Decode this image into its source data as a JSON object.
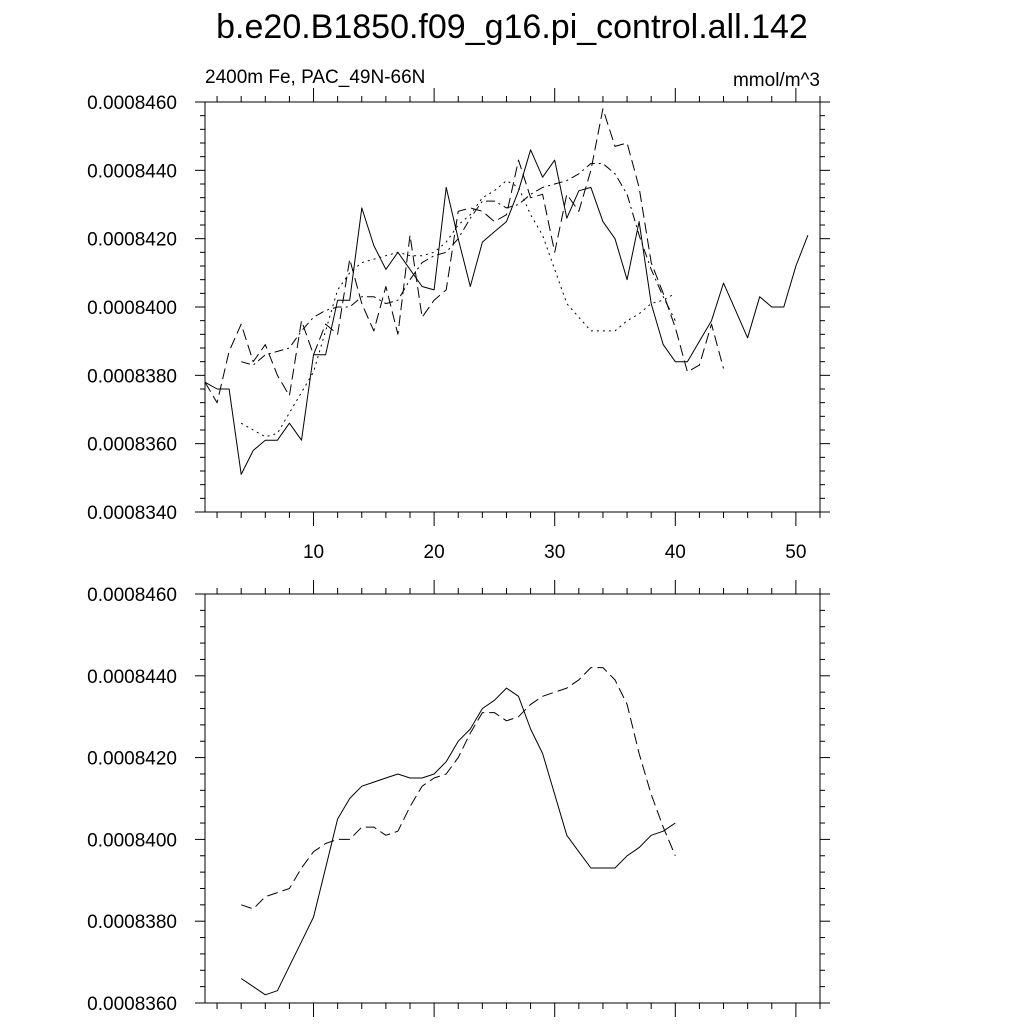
{
  "title": "b.e20.B1850.f09_g16.pi_control.all.142",
  "left_string": "2400m Fe, PAC_49N-66N",
  "right_string": "mmol/m^3",
  "chart_data": [
    {
      "type": "line",
      "panel": "top",
      "xlim": [
        1,
        52
      ],
      "ylim": [
        0.000834,
        0.000846
      ],
      "x_ticks": [
        10,
        20,
        30,
        40,
        50
      ],
      "y_ticks": [
        0.000834,
        0.000836,
        0.000838,
        0.00084,
        0.000842,
        0.000844,
        0.000846
      ],
      "y_tick_labels": [
        "0.0008340",
        "0.0008360",
        "0.0008380",
        "0.0008400",
        "0.0008420",
        "0.0008440",
        "0.0008460"
      ],
      "series": [
        {
          "style": "solid",
          "points": [
            [
              1,
              0.0008378
            ],
            [
              2,
              0.0008376
            ],
            [
              3,
              0.0008376
            ],
            [
              4,
              0.0008351
            ],
            [
              5,
              0.0008358
            ],
            [
              6,
              0.0008361
            ],
            [
              7,
              0.0008361
            ],
            [
              8,
              0.0008366
            ],
            [
              9,
              0.0008361
            ],
            [
              10,
              0.0008386
            ],
            [
              11,
              0.0008386
            ],
            [
              12,
              0.0008402
            ],
            [
              13,
              0.0008402
            ],
            [
              14,
              0.0008429
            ],
            [
              15,
              0.0008418
            ],
            [
              16,
              0.0008411
            ],
            [
              17,
              0.0008416
            ],
            [
              18,
              0.0008411
            ],
            [
              19,
              0.0008406
            ],
            [
              20,
              0.0008405
            ],
            [
              21,
              0.0008435
            ],
            [
              22,
              0.000842
            ],
            [
              23,
              0.0008406
            ],
            [
              24,
              0.0008419
            ],
            [
              25,
              0.0008422
            ],
            [
              26,
              0.0008425
            ],
            [
              27,
              0.0008434
            ],
            [
              28,
              0.0008446
            ],
            [
              29,
              0.0008438
            ],
            [
              30,
              0.0008443
            ],
            [
              31,
              0.0008426
            ],
            [
              32,
              0.0008434
            ],
            [
              33,
              0.0008435
            ],
            [
              34,
              0.0008425
            ],
            [
              35,
              0.000842
            ],
            [
              36,
              0.0008408
            ],
            [
              37,
              0.0008425
            ],
            [
              38,
              0.0008401
            ],
            [
              39,
              0.0008389
            ],
            [
              40,
              0.0008384
            ],
            [
              41,
              0.0008384
            ],
            [
              42,
              0.000839
            ],
            [
              43,
              0.0008396
            ],
            [
              44,
              0.0008407
            ],
            [
              45,
              0.0008399
            ],
            [
              46,
              0.0008391
            ],
            [
              47,
              0.0008403
            ],
            [
              48,
              0.00084
            ],
            [
              49,
              0.00084
            ],
            [
              50,
              0.0008412
            ],
            [
              51,
              0.0008421
            ]
          ]
        },
        {
          "style": "dashed",
          "points": [
            [
              1,
              0.0008378
            ],
            [
              2,
              0.0008372
            ],
            [
              3,
              0.0008387
            ],
            [
              4,
              0.0008395
            ],
            [
              5,
              0.0008384
            ],
            [
              6,
              0.0008389
            ],
            [
              7,
              0.000838
            ],
            [
              8,
              0.0008374
            ],
            [
              9,
              0.0008396
            ],
            [
              10,
              0.0008386
            ],
            [
              11,
              0.0008395
            ],
            [
              12,
              0.0008392
            ],
            [
              13,
              0.0008414
            ],
            [
              14,
              0.0008401
            ],
            [
              15,
              0.0008393
            ],
            [
              16,
              0.0008406
            ],
            [
              17,
              0.0008392
            ],
            [
              18,
              0.0008421
            ],
            [
              19,
              0.0008397
            ],
            [
              20,
              0.0008402
            ],
            [
              21,
              0.0008405
            ],
            [
              22,
              0.0008428
            ],
            [
              23,
              0.0008429
            ],
            [
              24,
              0.0008428
            ],
            [
              25,
              0.0008425
            ],
            [
              26,
              0.0008427
            ],
            [
              27,
              0.0008443
            ],
            [
              28,
              0.0008432
            ],
            [
              29,
              0.0008433
            ],
            [
              30,
              0.0008416
            ],
            [
              31,
              0.0008433
            ],
            [
              32,
              0.0008428
            ],
            [
              33,
              0.000844
            ],
            [
              34,
              0.0008458
            ],
            [
              35,
              0.0008447
            ],
            [
              36,
              0.0008448
            ],
            [
              37,
              0.0008435
            ],
            [
              38,
              0.0008413
            ],
            [
              39,
              0.0008404
            ],
            [
              40,
              0.0008394
            ],
            [
              41,
              0.0008381
            ],
            [
              42,
              0.0008383
            ],
            [
              43,
              0.0008395
            ],
            [
              44,
              0.0008382
            ]
          ]
        },
        {
          "style": "dash-dot",
          "points": [
            [
              4,
              0.0008384
            ],
            [
              5,
              0.0008383
            ],
            [
              6,
              0.0008386
            ],
            [
              7,
              0.0008387
            ],
            [
              8,
              0.0008388
            ],
            [
              9,
              0.0008393
            ],
            [
              10,
              0.0008397
            ],
            [
              11,
              0.0008399
            ],
            [
              12,
              0.00084
            ],
            [
              13,
              0.00084
            ],
            [
              14,
              0.0008403
            ],
            [
              15,
              0.0008403
            ],
            [
              16,
              0.0008401
            ],
            [
              17,
              0.0008402
            ],
            [
              18,
              0.0008408
            ],
            [
              19,
              0.0008413
            ],
            [
              20,
              0.0008415
            ],
            [
              21,
              0.0008416
            ],
            [
              22,
              0.000842
            ],
            [
              23,
              0.0008426
            ],
            [
              24,
              0.0008431
            ],
            [
              25,
              0.0008431
            ],
            [
              26,
              0.0008429
            ],
            [
              27,
              0.000843
            ],
            [
              28,
              0.0008433
            ],
            [
              29,
              0.0008435
            ],
            [
              30,
              0.0008436
            ],
            [
              31,
              0.0008437
            ],
            [
              32,
              0.0008439
            ],
            [
              33,
              0.0008442
            ],
            [
              34,
              0.0008442
            ],
            [
              35,
              0.0008439
            ],
            [
              36,
              0.0008433
            ],
            [
              37,
              0.0008421
            ],
            [
              38,
              0.0008411
            ],
            [
              39,
              0.0008403
            ],
            [
              40,
              0.0008396
            ]
          ]
        },
        {
          "style": "dotted",
          "points": [
            [
              4,
              0.0008366
            ],
            [
              5,
              0.0008364
            ],
            [
              6,
              0.0008362
            ],
            [
              7,
              0.0008363
            ],
            [
              8,
              0.0008369
            ],
            [
              9,
              0.0008375
            ],
            [
              10,
              0.0008381
            ],
            [
              11,
              0.0008393
            ],
            [
              12,
              0.0008405
            ],
            [
              13,
              0.000841
            ],
            [
              14,
              0.0008413
            ],
            [
              15,
              0.0008414
            ],
            [
              16,
              0.0008415
            ],
            [
              17,
              0.0008416
            ],
            [
              18,
              0.0008415
            ],
            [
              19,
              0.0008415
            ],
            [
              20,
              0.0008416
            ],
            [
              21,
              0.0008419
            ],
            [
              22,
              0.0008424
            ],
            [
              23,
              0.0008427
            ],
            [
              24,
              0.0008432
            ],
            [
              25,
              0.0008434
            ],
            [
              26,
              0.0008437
            ],
            [
              27,
              0.0008435
            ],
            [
              28,
              0.0008427
            ],
            [
              29,
              0.0008421
            ],
            [
              30,
              0.0008411
            ],
            [
              31,
              0.0008401
            ],
            [
              32,
              0.0008397
            ],
            [
              33,
              0.0008393
            ],
            [
              34,
              0.0008393
            ],
            [
              35,
              0.0008393
            ],
            [
              36,
              0.0008396
            ],
            [
              37,
              0.0008398
            ],
            [
              38,
              0.0008401
            ],
            [
              39,
              0.0008402
            ],
            [
              40,
              0.0008404
            ]
          ]
        }
      ]
    },
    {
      "type": "line",
      "panel": "bottom",
      "xlim": [
        1,
        52
      ],
      "ylim": [
        0.000836,
        0.000846
      ],
      "x_ticks": [
        10,
        20,
        30,
        40,
        50
      ],
      "y_ticks": [
        0.000836,
        0.000838,
        0.00084,
        0.000842,
        0.000844,
        0.000846
      ],
      "y_tick_labels": [
        "0.0008360",
        "0.0008380",
        "0.0008400",
        "0.0008420",
        "0.0008440",
        "0.0008460"
      ],
      "series": [
        {
          "style": "solid",
          "points": [
            [
              4,
              0.0008366
            ],
            [
              5,
              0.0008364
            ],
            [
              6,
              0.0008362
            ],
            [
              7,
              0.0008363
            ],
            [
              8,
              0.0008369
            ],
            [
              9,
              0.0008375
            ],
            [
              10,
              0.0008381
            ],
            [
              11,
              0.0008393
            ],
            [
              12,
              0.0008405
            ],
            [
              13,
              0.000841
            ],
            [
              14,
              0.0008413
            ],
            [
              15,
              0.0008414
            ],
            [
              16,
              0.0008415
            ],
            [
              17,
              0.0008416
            ],
            [
              18,
              0.0008415
            ],
            [
              19,
              0.0008415
            ],
            [
              20,
              0.0008416
            ],
            [
              21,
              0.0008419
            ],
            [
              22,
              0.0008424
            ],
            [
              23,
              0.0008427
            ],
            [
              24,
              0.0008432
            ],
            [
              25,
              0.0008434
            ],
            [
              26,
              0.0008437
            ],
            [
              27,
              0.0008435
            ],
            [
              28,
              0.0008427
            ],
            [
              29,
              0.0008421
            ],
            [
              30,
              0.0008411
            ],
            [
              31,
              0.0008401
            ],
            [
              32,
              0.0008397
            ],
            [
              33,
              0.0008393
            ],
            [
              34,
              0.0008393
            ],
            [
              35,
              0.0008393
            ],
            [
              36,
              0.0008396
            ],
            [
              37,
              0.0008398
            ],
            [
              38,
              0.0008401
            ],
            [
              39,
              0.0008402
            ],
            [
              40,
              0.0008404
            ]
          ]
        },
        {
          "style": "dashed",
          "points": [
            [
              4,
              0.0008384
            ],
            [
              5,
              0.0008383
            ],
            [
              6,
              0.0008386
            ],
            [
              7,
              0.0008387
            ],
            [
              8,
              0.0008388
            ],
            [
              9,
              0.0008393
            ],
            [
              10,
              0.0008397
            ],
            [
              11,
              0.0008399
            ],
            [
              12,
              0.00084
            ],
            [
              13,
              0.00084
            ],
            [
              14,
              0.0008403
            ],
            [
              15,
              0.0008403
            ],
            [
              16,
              0.0008401
            ],
            [
              17,
              0.0008402
            ],
            [
              18,
              0.0008408
            ],
            [
              19,
              0.0008413
            ],
            [
              20,
              0.0008415
            ],
            [
              21,
              0.0008416
            ],
            [
              22,
              0.000842
            ],
            [
              23,
              0.0008426
            ],
            [
              24,
              0.0008431
            ],
            [
              25,
              0.0008431
            ],
            [
              26,
              0.0008429
            ],
            [
              27,
              0.000843
            ],
            [
              28,
              0.0008433
            ],
            [
              29,
              0.0008435
            ],
            [
              30,
              0.0008436
            ],
            [
              31,
              0.0008437
            ],
            [
              32,
              0.0008439
            ],
            [
              33,
              0.0008442
            ],
            [
              34,
              0.0008442
            ],
            [
              35,
              0.0008439
            ],
            [
              36,
              0.0008433
            ],
            [
              37,
              0.0008421
            ],
            [
              38,
              0.0008411
            ],
            [
              39,
              0.0008403
            ],
            [
              40,
              0.0008396
            ]
          ]
        }
      ]
    }
  ]
}
